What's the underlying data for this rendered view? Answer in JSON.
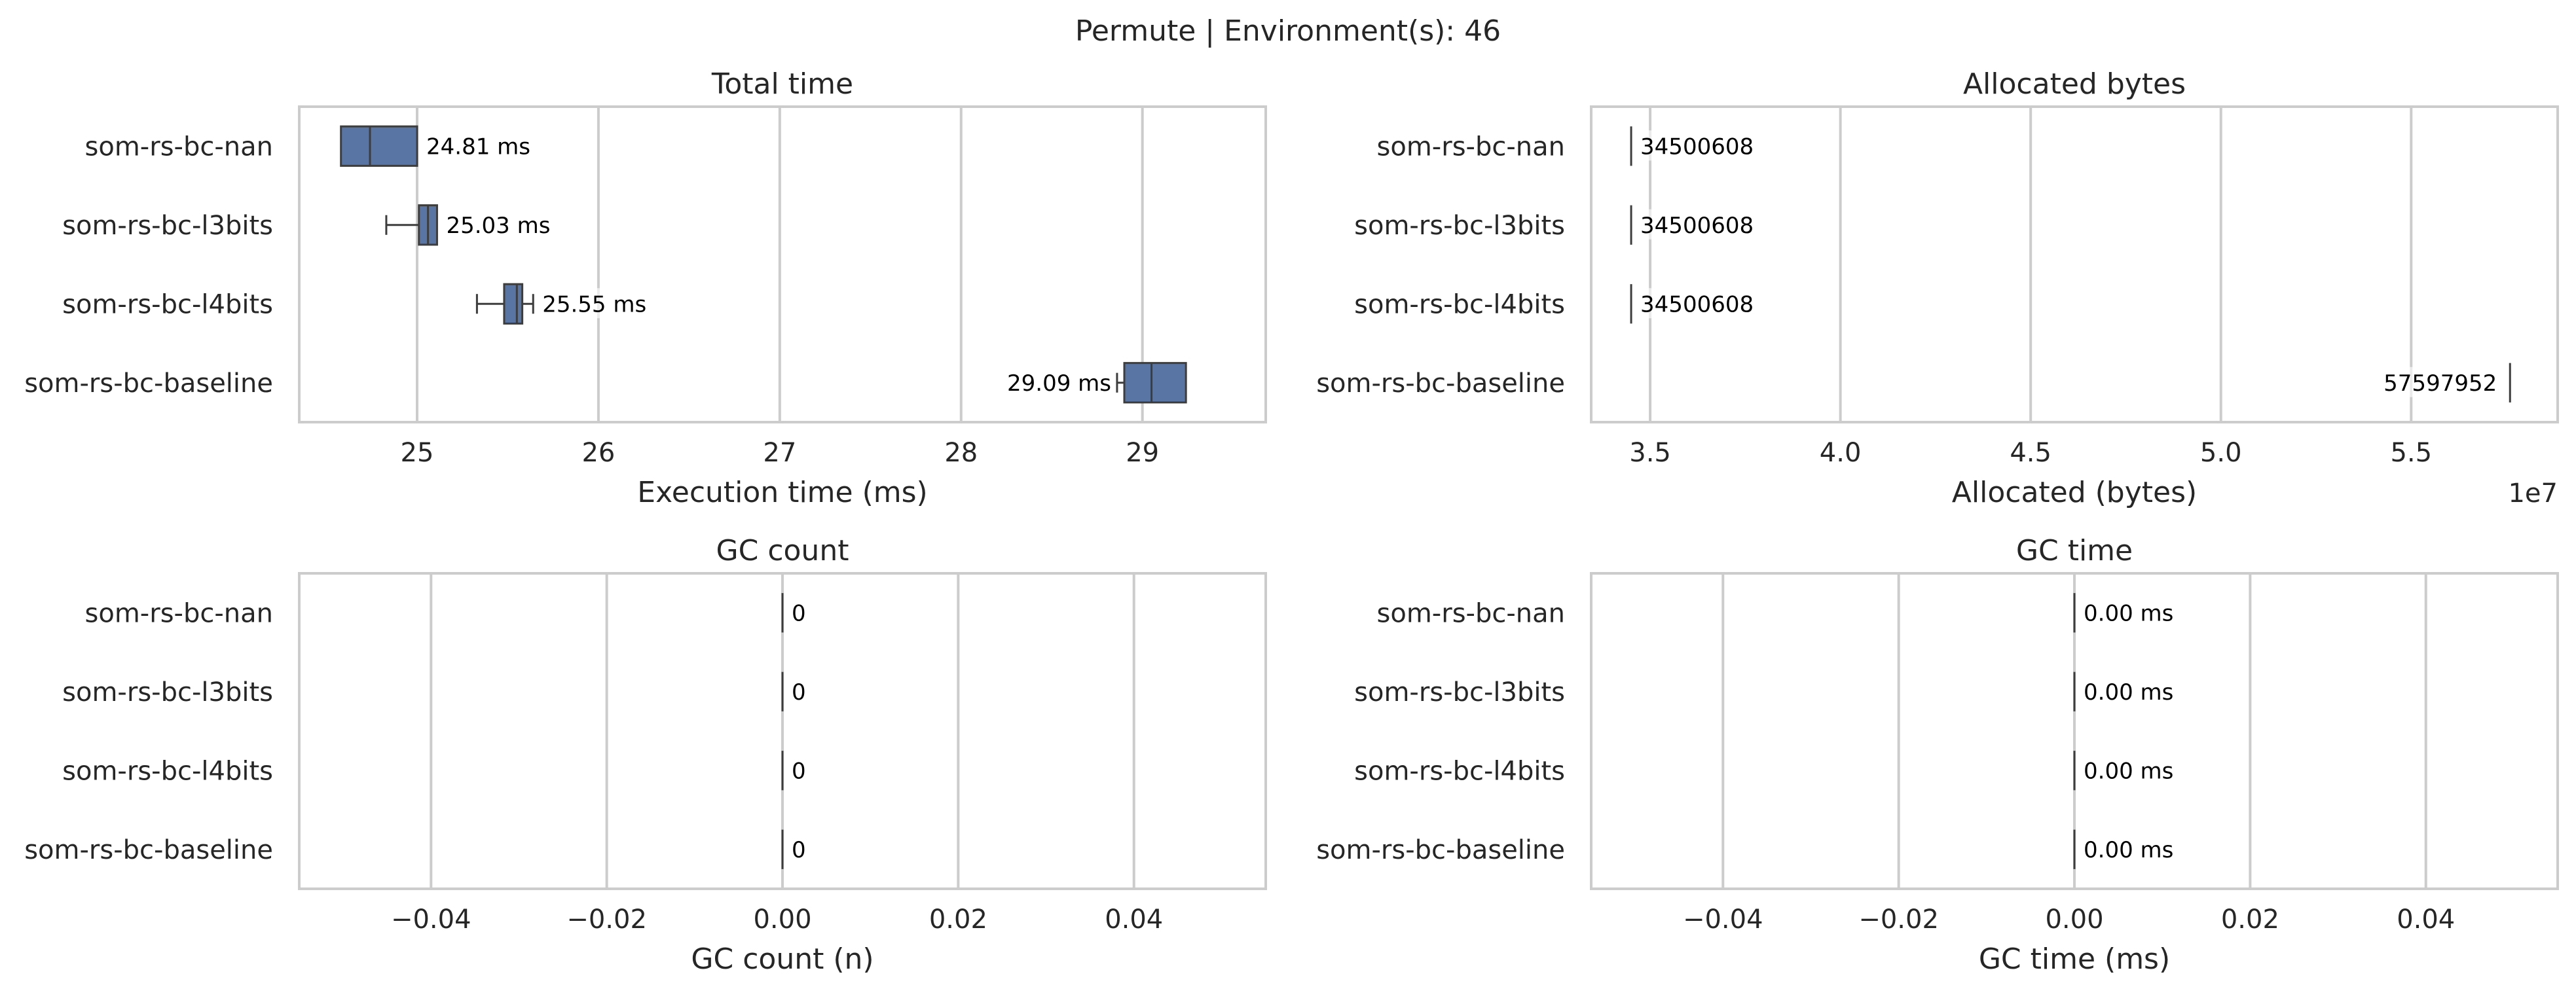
{
  "suptitle": "Permute | Environment(s): 46",
  "colors": {
    "box": "#5975a4",
    "line": "#3d3d3d",
    "grid": "#cccccc",
    "text": "#262626"
  },
  "chart_data": [
    {
      "type": "box",
      "title": "Total time",
      "xlabel": "Execution time (ms)",
      "ylabel": "",
      "xlim": [
        24.35,
        29.68
      ],
      "xticks": [
        25,
        26,
        27,
        28,
        29
      ],
      "xtick_labels": [
        "25",
        "26",
        "27",
        "28",
        "29"
      ],
      "offset_label": "",
      "grid": true,
      "categories": [
        "som-rs-bc-nan",
        "som-rs-bc-l3bits",
        "som-rs-bc-l4bits",
        "som-rs-bc-baseline"
      ],
      "boxes": [
        {
          "whisker_low": 24.58,
          "q1": 24.58,
          "median": 24.74,
          "q3": 25.0,
          "whisker_high": 25.0
        },
        {
          "whisker_low": 24.83,
          "q1": 25.01,
          "median": 25.06,
          "q3": 25.11,
          "whisker_high": 25.11
        },
        {
          "whisker_low": 25.33,
          "q1": 25.48,
          "median": 25.55,
          "q3": 25.58,
          "whisker_high": 25.64
        },
        {
          "whisker_low": 28.86,
          "q1": 28.9,
          "median": 29.05,
          "q3": 29.24,
          "whisker_high": 29.24
        }
      ],
      "annotations": [
        "24.81 ms",
        "25.03 ms",
        "25.55 ms",
        "29.09 ms"
      ]
    },
    {
      "type": "box",
      "title": "Allocated bytes",
      "xlabel": "Allocated (bytes)",
      "ylabel": "",
      "xlim": [
        33450000,
        58850000
      ],
      "xticks": [
        35000000,
        40000000,
        45000000,
        50000000,
        55000000
      ],
      "xtick_labels": [
        "3.5",
        "4.0",
        "4.5",
        "5.0",
        "5.5"
      ],
      "offset_label": "1e7",
      "grid": true,
      "categories": [
        "som-rs-bc-nan",
        "som-rs-bc-l3bits",
        "som-rs-bc-l4bits",
        "som-rs-bc-baseline"
      ],
      "boxes": [
        {
          "whisker_low": 34500608,
          "q1": 34500608,
          "median": 34500608,
          "q3": 34500608,
          "whisker_high": 34500608
        },
        {
          "whisker_low": 34500608,
          "q1": 34500608,
          "median": 34500608,
          "q3": 34500608,
          "whisker_high": 34500608
        },
        {
          "whisker_low": 34500608,
          "q1": 34500608,
          "median": 34500608,
          "q3": 34500608,
          "whisker_high": 34500608
        },
        {
          "whisker_low": 57597952,
          "q1": 57597952,
          "median": 57597952,
          "q3": 57597952,
          "whisker_high": 57597952
        }
      ],
      "annotations": [
        "34500608",
        "34500608",
        "34500608",
        "57597952"
      ]
    },
    {
      "type": "box",
      "title": "GC count",
      "xlabel": "GC count (n)",
      "ylabel": "",
      "xlim": [
        -0.055,
        0.055
      ],
      "xticks": [
        -0.04,
        -0.02,
        0.0,
        0.02,
        0.04
      ],
      "xtick_labels": [
        "−0.04",
        "−0.02",
        "0.00",
        "0.02",
        "0.04"
      ],
      "offset_label": "",
      "grid": true,
      "categories": [
        "som-rs-bc-nan",
        "som-rs-bc-l3bits",
        "som-rs-bc-l4bits",
        "som-rs-bc-baseline"
      ],
      "boxes": [
        {
          "whisker_low": 0,
          "q1": 0,
          "median": 0,
          "q3": 0,
          "whisker_high": 0
        },
        {
          "whisker_low": 0,
          "q1": 0,
          "median": 0,
          "q3": 0,
          "whisker_high": 0
        },
        {
          "whisker_low": 0,
          "q1": 0,
          "median": 0,
          "q3": 0,
          "whisker_high": 0
        },
        {
          "whisker_low": 0,
          "q1": 0,
          "median": 0,
          "q3": 0,
          "whisker_high": 0
        }
      ],
      "annotations": [
        "0",
        "0",
        "0",
        "0"
      ]
    },
    {
      "type": "box",
      "title": "GC time",
      "xlabel": "GC time (ms)",
      "ylabel": "",
      "xlim": [
        -0.055,
        0.055
      ],
      "xticks": [
        -0.04,
        -0.02,
        0.0,
        0.02,
        0.04
      ],
      "xtick_labels": [
        "−0.04",
        "−0.02",
        "0.00",
        "0.02",
        "0.04"
      ],
      "offset_label": "",
      "grid": true,
      "categories": [
        "som-rs-bc-nan",
        "som-rs-bc-l3bits",
        "som-rs-bc-l4bits",
        "som-rs-bc-baseline"
      ],
      "boxes": [
        {
          "whisker_low": 0,
          "q1": 0,
          "median": 0,
          "q3": 0,
          "whisker_high": 0
        },
        {
          "whisker_low": 0,
          "q1": 0,
          "median": 0,
          "q3": 0,
          "whisker_high": 0
        },
        {
          "whisker_low": 0,
          "q1": 0,
          "median": 0,
          "q3": 0,
          "whisker_high": 0
        },
        {
          "whisker_low": 0,
          "q1": 0,
          "median": 0,
          "q3": 0,
          "whisker_high": 0
        }
      ],
      "annotations": [
        "0.00 ms",
        "0.00 ms",
        "0.00 ms",
        "0.00 ms"
      ]
    }
  ]
}
